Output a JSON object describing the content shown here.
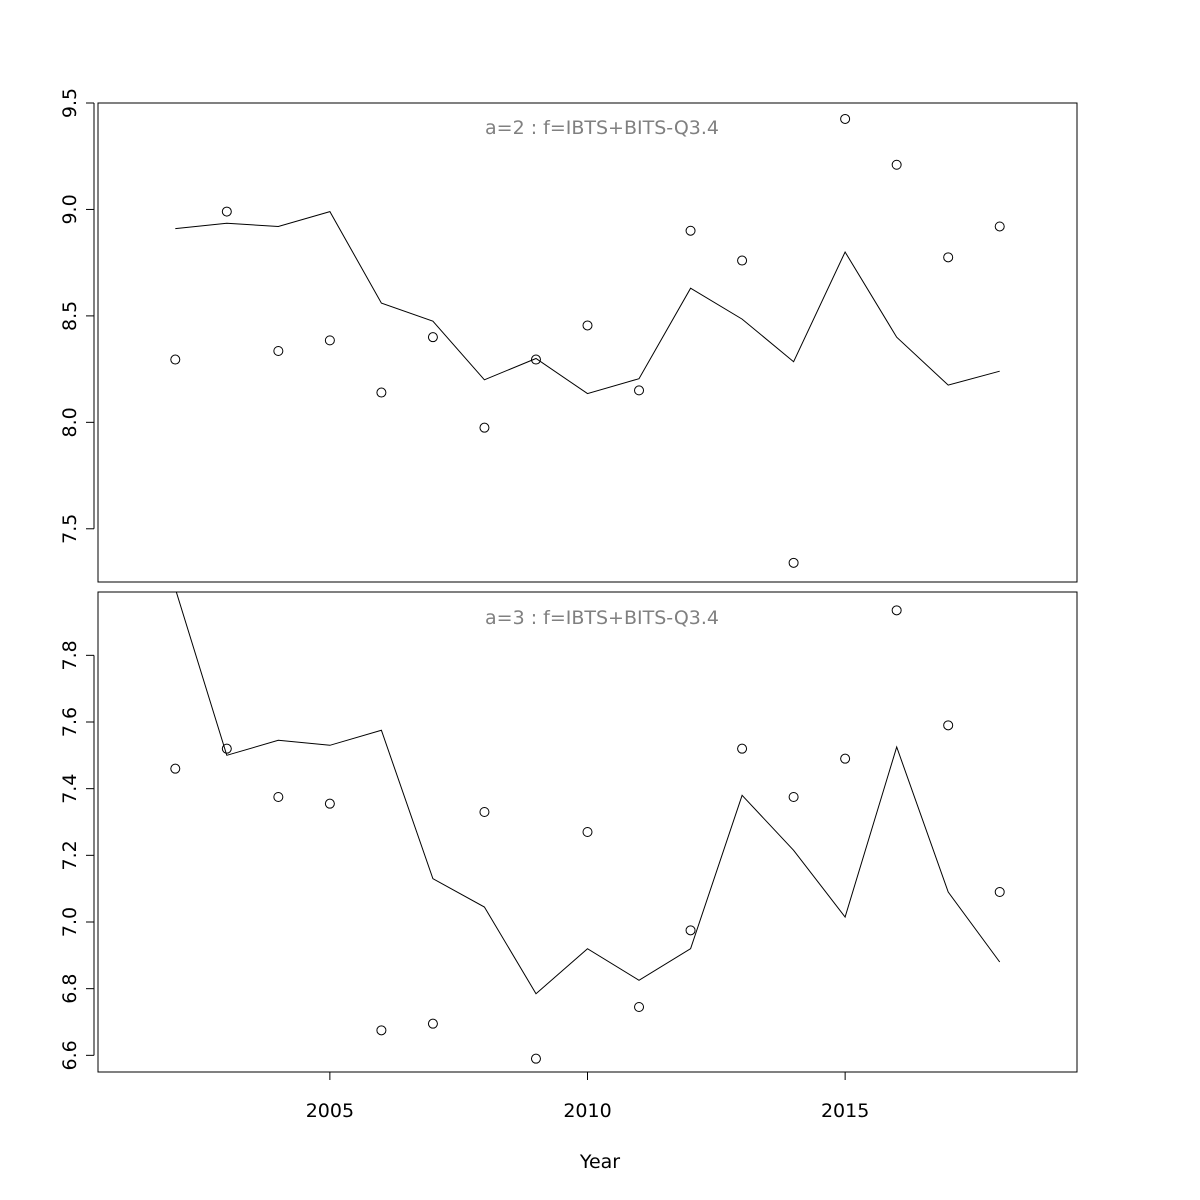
{
  "chart_data": [
    {
      "type": "line+scatter",
      "title": "a=2  :  f=IBTS+BITS-Q3.4",
      "xlabel": "Year",
      "ylabel": "",
      "ylim": [
        7.25,
        9.5
      ],
      "xlim": [
        2000.5,
        2019.5
      ],
      "yticks": [
        "7.5",
        "8.0",
        "8.5",
        "9.0",
        "9.5"
      ],
      "x": [
        2002,
        2003,
        2004,
        2005,
        2006,
        2007,
        2008,
        2009,
        2010,
        2011,
        2012,
        2013,
        2014,
        2015,
        2016,
        2017,
        2018
      ],
      "line_values": [
        8.91,
        8.935,
        8.92,
        8.99,
        8.56,
        8.475,
        8.2,
        8.3,
        8.135,
        8.205,
        8.63,
        8.485,
        8.285,
        8.8,
        8.4,
        8.175,
        8.24
      ],
      "point_values": [
        8.295,
        8.99,
        8.335,
        8.385,
        8.14,
        8.4,
        7.975,
        8.295,
        8.455,
        8.15,
        8.9,
        8.76,
        7.34,
        9.425,
        9.21,
        8.775,
        8.92
      ],
      "grid": false,
      "colors": {
        "line": "#000000",
        "points": "#000000",
        "title": "#808080"
      }
    },
    {
      "type": "line+scatter",
      "title": "a=3  :  f=IBTS+BITS-Q3.4",
      "xlabel": "Year",
      "ylabel": "",
      "ylim": [
        6.55,
        7.99
      ],
      "xlim": [
        2000.5,
        2019.5
      ],
      "yticks": [
        "6.6",
        "6.8",
        "7.0",
        "7.2",
        "7.4",
        "7.6",
        "7.8"
      ],
      "xticks": [
        "2005",
        "2010",
        "2015"
      ],
      "x": [
        2002,
        2003,
        2004,
        2005,
        2006,
        2007,
        2008,
        2009,
        2010,
        2011,
        2012,
        2013,
        2014,
        2015,
        2016,
        2017,
        2018
      ],
      "line_values": [
        8.0,
        7.5,
        7.545,
        7.53,
        7.575,
        7.13,
        7.045,
        6.785,
        6.92,
        6.825,
        6.92,
        7.38,
        7.215,
        7.015,
        7.525,
        7.09,
        6.88
      ],
      "point_values": [
        7.46,
        7.52,
        7.375,
        7.355,
        6.675,
        6.695,
        7.33,
        6.59,
        7.27,
        6.745,
        6.975,
        7.52,
        7.375,
        7.49,
        7.935,
        7.59,
        7.09
      ],
      "grid": false,
      "colors": {
        "line": "#000000",
        "points": "#000000",
        "title": "#808080"
      }
    }
  ]
}
